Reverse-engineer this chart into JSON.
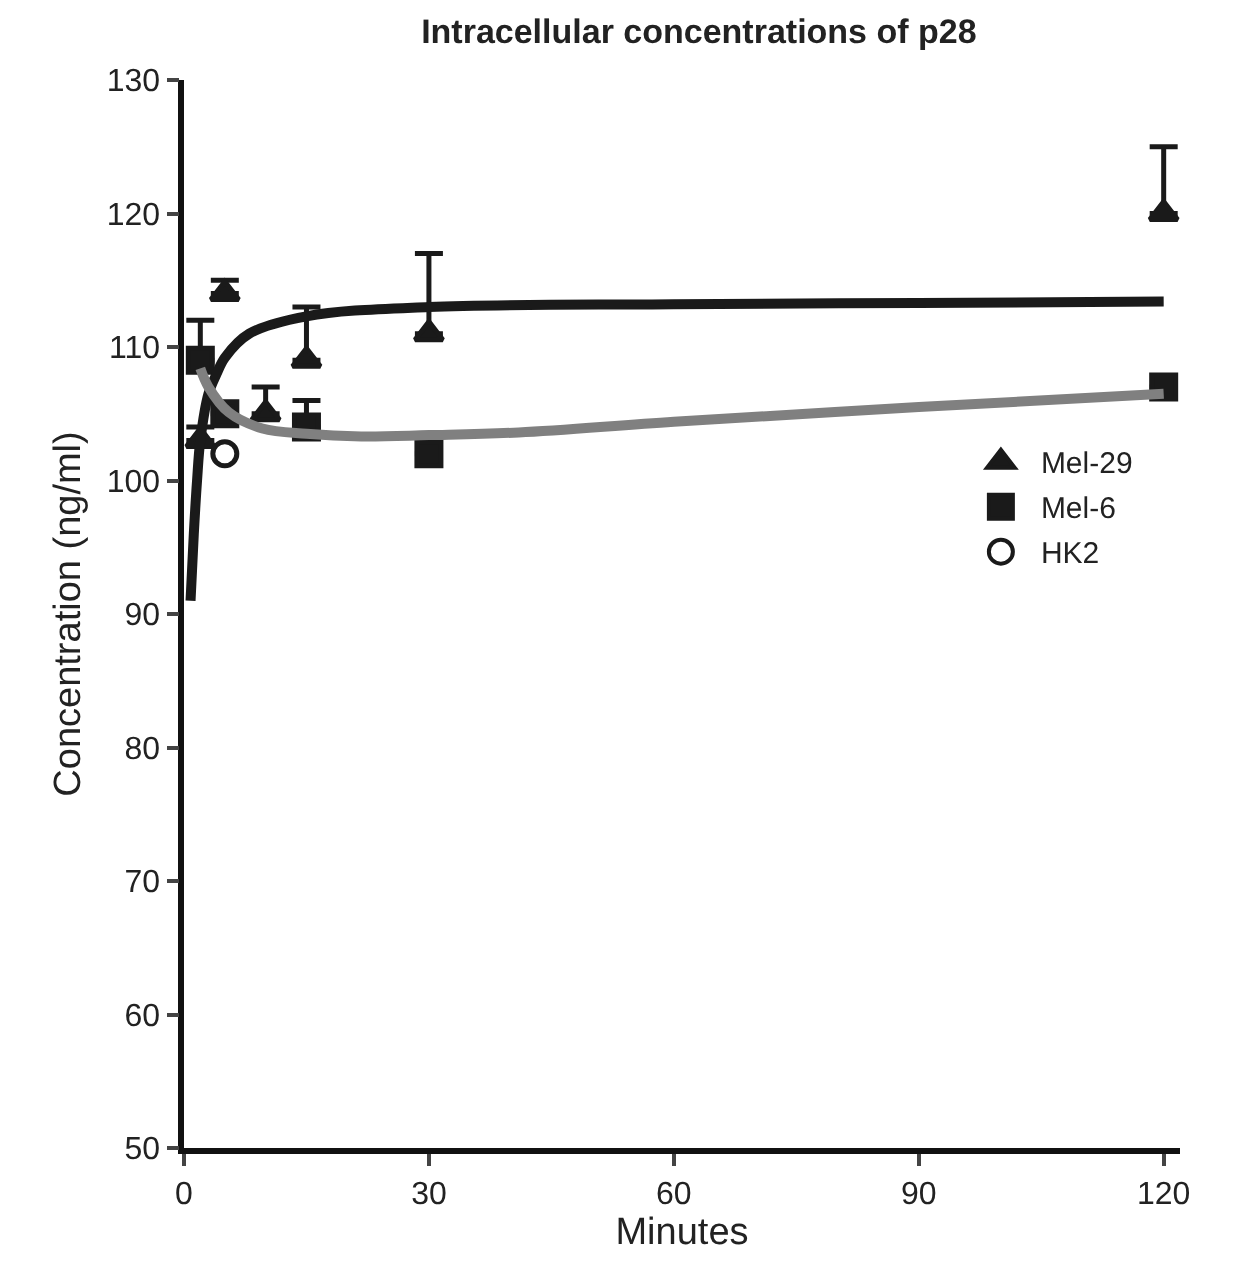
{
  "chart_data": {
    "type": "scatter",
    "title": "Intracellular concentrations of p28",
    "xlabel": "Minutes",
    "ylabel": "Concentration (ng/ml)",
    "xlim": [
      0,
      122
    ],
    "xticks": [
      0,
      30,
      60,
      90,
      120
    ],
    "ylim": [
      50,
      130
    ],
    "yticks": [
      50,
      60,
      70,
      80,
      90,
      100,
      110,
      120,
      130
    ],
    "legend": "right",
    "series": [
      {
        "name": "Mel-29",
        "marker": "triangle",
        "color": "#1a1a1a",
        "x": [
          2,
          5,
          10,
          15,
          30,
          120
        ],
        "values": [
          103,
          114,
          105,
          109,
          111,
          120
        ],
        "errors": [
          [
            103,
            104
          ],
          [
            114,
            115
          ],
          [
            105,
            107
          ],
          [
            109,
            113
          ],
          [
            111,
            117
          ],
          [
            120,
            125
          ]
        ]
      },
      {
        "name": "Mel-6",
        "marker": "square",
        "color": "#1a1a1a",
        "x": [
          2,
          5,
          15,
          30,
          120
        ],
        "values": [
          109,
          105,
          104,
          102,
          107
        ],
        "errors": [
          [
            109,
            112
          ],
          null,
          [
            104,
            106
          ],
          null,
          null
        ]
      },
      {
        "name": "HK2",
        "marker": "circle-open",
        "color": "#1a1a1a",
        "x": [
          5
        ],
        "values": [
          102
        ]
      },
      {
        "type": "line",
        "color": "#1a1a1a",
        "marker": "none",
        "x": [
          0.8,
          1.2,
          1.6,
          2,
          3,
          4,
          5,
          8,
          15,
          30,
          60,
          90,
          120
        ],
        "values": [
          91,
          96,
          100,
          103,
          106.5,
          108,
          109.2,
          111,
          112.3,
          113,
          113.2,
          113.3,
          113.4
        ]
      },
      {
        "type": "line",
        "color": "#808080",
        "marker": "none",
        "x": [
          2,
          3,
          5.5,
          9.6,
          15,
          21.7,
          30,
          41,
          60,
          90,
          120
        ],
        "values": [
          108.4,
          107,
          105.1,
          103.9,
          103.5,
          103.3,
          103.4,
          103.6,
          104.4,
          105.5,
          106.5
        ]
      }
    ]
  }
}
